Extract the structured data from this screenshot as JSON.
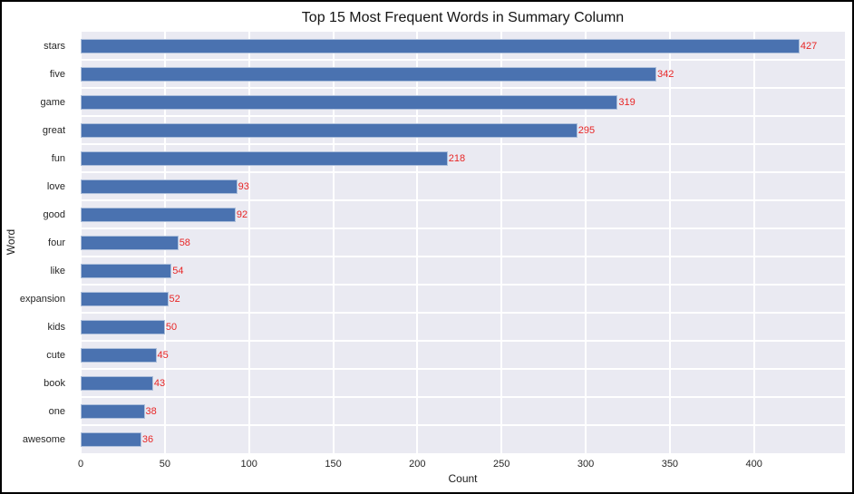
{
  "chart_data": {
    "type": "bar",
    "orientation": "horizontal",
    "title": "Top 15 Most Frequent Words in Summary Column",
    "xlabel": "Count",
    "ylabel": "Word",
    "categories": [
      "stars",
      "five",
      "game",
      "great",
      "fun",
      "love",
      "good",
      "four",
      "like",
      "expansion",
      "kids",
      "cute",
      "book",
      "one",
      "awesome"
    ],
    "values": [
      427,
      342,
      319,
      295,
      218,
      93,
      92,
      58,
      54,
      52,
      50,
      45,
      43,
      38,
      36
    ],
    "value_labels": [
      "427",
      "342",
      "319",
      "295",
      "218",
      "93",
      "92",
      "58",
      "54",
      "52",
      "50",
      "45",
      "43",
      "38",
      "36"
    ],
    "xlim": [
      0,
      454
    ],
    "xticks": [
      0,
      50,
      100,
      150,
      200,
      250,
      300,
      350,
      400
    ],
    "grid": true,
    "legend": false,
    "colors": {
      "bar": "#4a72b0",
      "value_label": "#e82626",
      "plot_background": "#eaeaf2",
      "gridline": "#ffffff",
      "figure_background": "#ffffff",
      "frame_border": "#000000",
      "tick_label": "#262626",
      "title_text": "#141414"
    }
  }
}
